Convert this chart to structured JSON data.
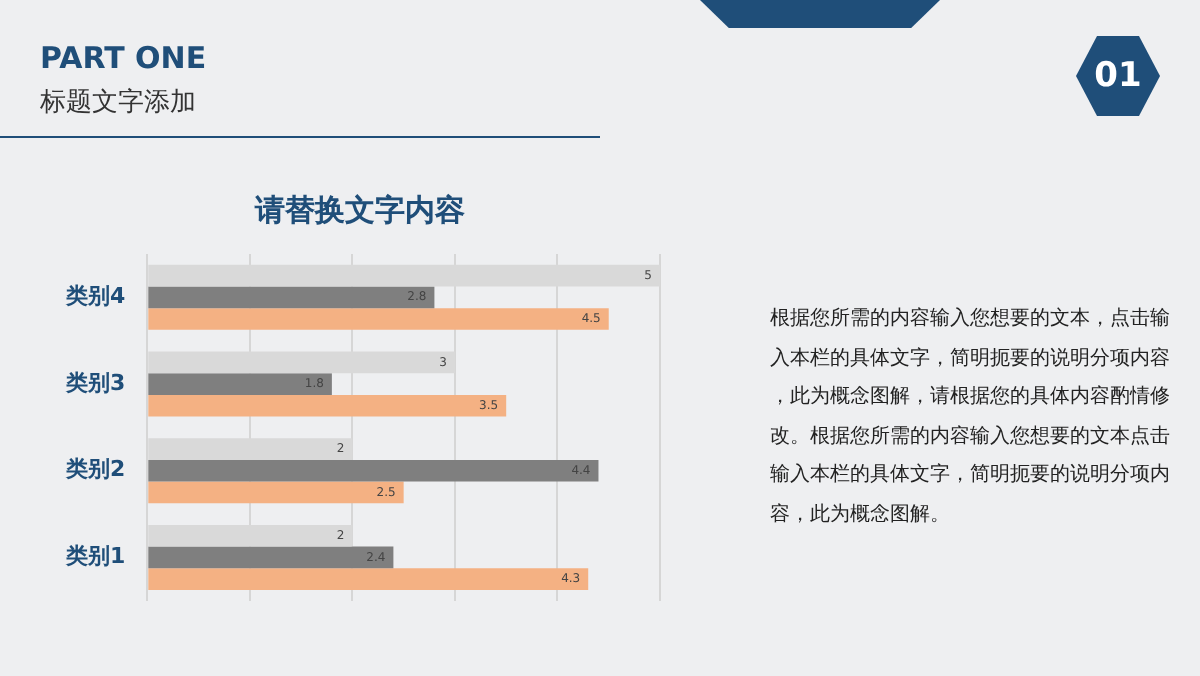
{
  "chart_data": {
    "type": "bar",
    "orientation": "horizontal",
    "title": "请替换文字内容",
    "categories": [
      "类别4",
      "类别3",
      "类别2",
      "类别1"
    ],
    "series": [
      {
        "color": "#d9d9d9",
        "values": [
          5,
          3,
          2,
          2
        ]
      },
      {
        "color": "#7f7f7f",
        "values": [
          2.8,
          1.8,
          4.4,
          2.4
        ]
      },
      {
        "color": "#f4b183",
        "values": [
          4.5,
          3.5,
          2.5,
          4.3
        ]
      }
    ],
    "xlim": [
      0,
      5
    ],
    "xticks": [
      {
        "value": 0,
        "label": null
      },
      {
        "value": 1,
        "label": null
      },
      {
        "value": 2,
        "label": null
      },
      {
        "value": 3,
        "label": null
      },
      {
        "value": 4,
        "label": null
      },
      {
        "value": 5,
        "label": null
      }
    ],
    "tick_labels": "y",
    "grid": "x",
    "legend": false,
    "data_labels": true,
    "annotations": [
      "PART ONE",
      "标题文字添加",
      "01",
      "根据您所需的内容输入您想要的文本，点击输入本栏的具体文字，简明扼要的说明分项内容，此为概念图解，请根据您的具体内容酌情修改。根据您所需的内容输入您想要的文本点击输入本栏的具体文字，简明扼要的说明分项内容，此为概念图解。"
    ]
  }
}
